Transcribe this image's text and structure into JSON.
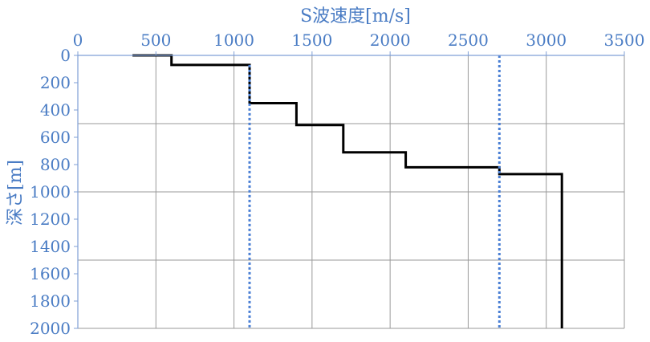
{
  "chart_data": {
    "type": "line",
    "title": "",
    "xlabel": "S波速度[m/s]",
    "ylabel": "深さ[m]",
    "xlim": [
      0,
      3500
    ],
    "ylim": [
      0,
      2000
    ],
    "y_inverted": true,
    "x_axis_position": "top",
    "x_ticks": [
      "0",
      "500",
      "1000",
      "1500",
      "2000",
      "2500",
      "3000",
      "3500"
    ],
    "y_ticks": [
      "0",
      "200",
      "400",
      "600",
      "800",
      "1000",
      "1200",
      "1400",
      "1600",
      "1800",
      "2000"
    ],
    "x_grid_values": [
      500,
      1000,
      1500,
      2000,
      2500,
      3000,
      3500
    ],
    "y_grid_values": [
      500,
      1000,
      1500,
      2000
    ],
    "series": [
      {
        "style": "solid",
        "color": "#000000",
        "points": [
          [
            350,
            0
          ],
          [
            600,
            0
          ],
          [
            600,
            70
          ],
          [
            1100,
            70
          ],
          [
            1100,
            350
          ],
          [
            1400,
            350
          ],
          [
            1400,
            510
          ],
          [
            1700,
            510
          ],
          [
            1700,
            710
          ],
          [
            2100,
            710
          ],
          [
            2100,
            820
          ],
          [
            2700,
            820
          ],
          [
            2700,
            870
          ],
          [
            3100,
            870
          ],
          [
            3100,
            2000
          ]
        ]
      },
      {
        "style": "dotted",
        "color": "#4a7fd4",
        "points": [
          [
            1100,
            70
          ],
          [
            1100,
            2000
          ]
        ]
      },
      {
        "style": "dotted",
        "color": "#4a7fd4",
        "points": [
          [
            2700,
            0
          ],
          [
            2700,
            2000
          ]
        ]
      }
    ],
    "label_color": "#4a7cc4",
    "axis_color": "#7f9fd6",
    "grid_color": "#999999"
  }
}
